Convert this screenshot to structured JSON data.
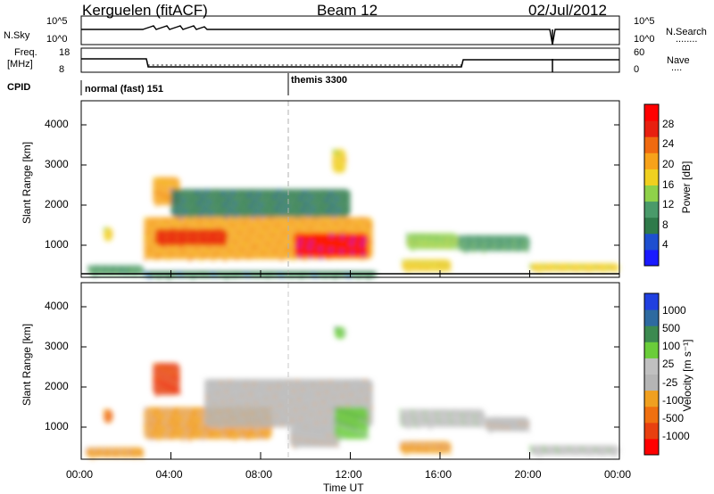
{
  "header": {
    "station": "Kerguelen (fitACF)",
    "beam": "Beam 12",
    "date": "02/Jul/2012"
  },
  "noise_panel": {
    "left_label": "N.Sky",
    "left_ticks": [
      "10^5",
      "10^0"
    ],
    "right_ticks": [
      "10^5",
      "10^0"
    ],
    "right_label": "N.Search",
    "right_legend": "........"
  },
  "freq_panel": {
    "left_label_1": "Freq.",
    "left_label_2": "[MHz]",
    "left_ticks": [
      "18",
      "8"
    ],
    "right_ticks": [
      "60",
      "0"
    ],
    "right_label": "Nave",
    "right_legend": "....",
    "cpid_label": "CPID",
    "programs": [
      {
        "name": "normal (fast) 151",
        "start_hour": 0
      },
      {
        "name": "themis 3300",
        "start_hour": 9.3
      }
    ]
  },
  "colors": {
    "power_scale": [
      "#1a1aff",
      "#1e4fd0",
      "#2f7a4a",
      "#4a9a6a",
      "#8fd14a",
      "#f0d020",
      "#f7a21a",
      "#f06a10",
      "#e82010",
      "#ff0000"
    ],
    "velocity_scale": [
      "#2040e0",
      "#2e6aa0",
      "#3c8a50",
      "#6acd3a",
      "#c0c0c0",
      "#b5b5b5",
      "#f0a020",
      "#f07010",
      "#e84010",
      "#ff0000"
    ]
  },
  "chart_data": [
    {
      "type": "heatmap",
      "name": "power",
      "ylabel": "Slant Range [km]",
      "yticks": [
        "1000",
        "2000",
        "3000",
        "4000"
      ],
      "ylim": [
        200,
        4600
      ],
      "xlim": [
        0,
        24
      ],
      "colorbar": {
        "label": "Power [dB]",
        "ticks": [
          "28",
          "24",
          "20",
          "16",
          "12",
          "8",
          "4"
        ]
      },
      "regions": [
        {
          "x0": 1.0,
          "x1": 1.4,
          "y0": 1100,
          "y1": 1450,
          "level": 5
        },
        {
          "x0": 0.3,
          "x1": 2.8,
          "y0": 250,
          "y1": 500,
          "level": 3
        },
        {
          "x0": 2.8,
          "x1": 13.0,
          "y0": 650,
          "y1": 1700,
          "level": 6
        },
        {
          "x0": 3.3,
          "x1": 6.5,
          "y0": 1000,
          "y1": 1400,
          "level": 8
        },
        {
          "x0": 9.5,
          "x1": 12.8,
          "y0": 700,
          "y1": 1300,
          "level": 9
        },
        {
          "x0": 3.2,
          "x1": 4.4,
          "y0": 2000,
          "y1": 2700,
          "level": 6
        },
        {
          "x0": 4.0,
          "x1": 12.0,
          "y0": 1700,
          "y1": 2400,
          "level": 2
        },
        {
          "x0": 11.2,
          "x1": 11.8,
          "y0": 2800,
          "y1": 3400,
          "level": 5
        },
        {
          "x0": 14.3,
          "x1": 16.5,
          "y0": 350,
          "y1": 650,
          "level": 5
        },
        {
          "x0": 14.5,
          "x1": 16.8,
          "y0": 900,
          "y1": 1300,
          "level": 4
        },
        {
          "x0": 16.8,
          "x1": 20.0,
          "y0": 850,
          "y1": 1250,
          "level": 3
        },
        {
          "x0": 20.0,
          "x1": 24.0,
          "y0": 350,
          "y1": 550,
          "level": 5
        },
        {
          "x0": 2.8,
          "x1": 13.2,
          "y0": 200,
          "y1": 350,
          "level": 2
        }
      ]
    },
    {
      "type": "heatmap",
      "name": "velocity",
      "ylabel": "Slant Range [km]",
      "yticks": [
        "1000",
        "2000",
        "3000",
        "4000"
      ],
      "ylim": [
        200,
        4600
      ],
      "xlim": [
        0,
        24
      ],
      "xlabel": "Time UT",
      "xticks": [
        "00:00",
        "04:00",
        "08:00",
        "12:00",
        "16:00",
        "20:00",
        "00:00"
      ],
      "colorbar": {
        "label": "Velocity [m s⁻¹]",
        "ticks": [
          "1000",
          "500",
          "100",
          "25",
          "-25",
          "-100",
          "-500",
          "-1000"
        ]
      },
      "regions": [
        {
          "x0": 1.0,
          "x1": 1.4,
          "y0": 1100,
          "y1": 1450,
          "level": 7
        },
        {
          "x0": 0.2,
          "x1": 2.8,
          "y0": 250,
          "y1": 500,
          "level": 6
        },
        {
          "x0": 2.8,
          "x1": 8.5,
          "y0": 700,
          "y1": 1500,
          "level": 6
        },
        {
          "x0": 3.2,
          "x1": 4.4,
          "y0": 1800,
          "y1": 2600,
          "level": 8
        },
        {
          "x0": 5.5,
          "x1": 13.0,
          "y0": 1000,
          "y1": 2200,
          "level": 5
        },
        {
          "x0": 9.3,
          "x1": 11.5,
          "y0": 500,
          "y1": 1000,
          "level": 5
        },
        {
          "x0": 11.3,
          "x1": 12.8,
          "y0": 700,
          "y1": 1500,
          "level": 3
        },
        {
          "x0": 11.3,
          "x1": 11.8,
          "y0": 3200,
          "y1": 3500,
          "level": 3
        },
        {
          "x0": 14.2,
          "x1": 16.5,
          "y0": 350,
          "y1": 650,
          "level": 6
        },
        {
          "x0": 14.2,
          "x1": 18.0,
          "y0": 1000,
          "y1": 1450,
          "level": 4
        },
        {
          "x0": 18.0,
          "x1": 20.0,
          "y0": 900,
          "y1": 1250,
          "level": 5
        },
        {
          "x0": 20.0,
          "x1": 24.0,
          "y0": 300,
          "y1": 550,
          "level": 4
        }
      ]
    }
  ]
}
